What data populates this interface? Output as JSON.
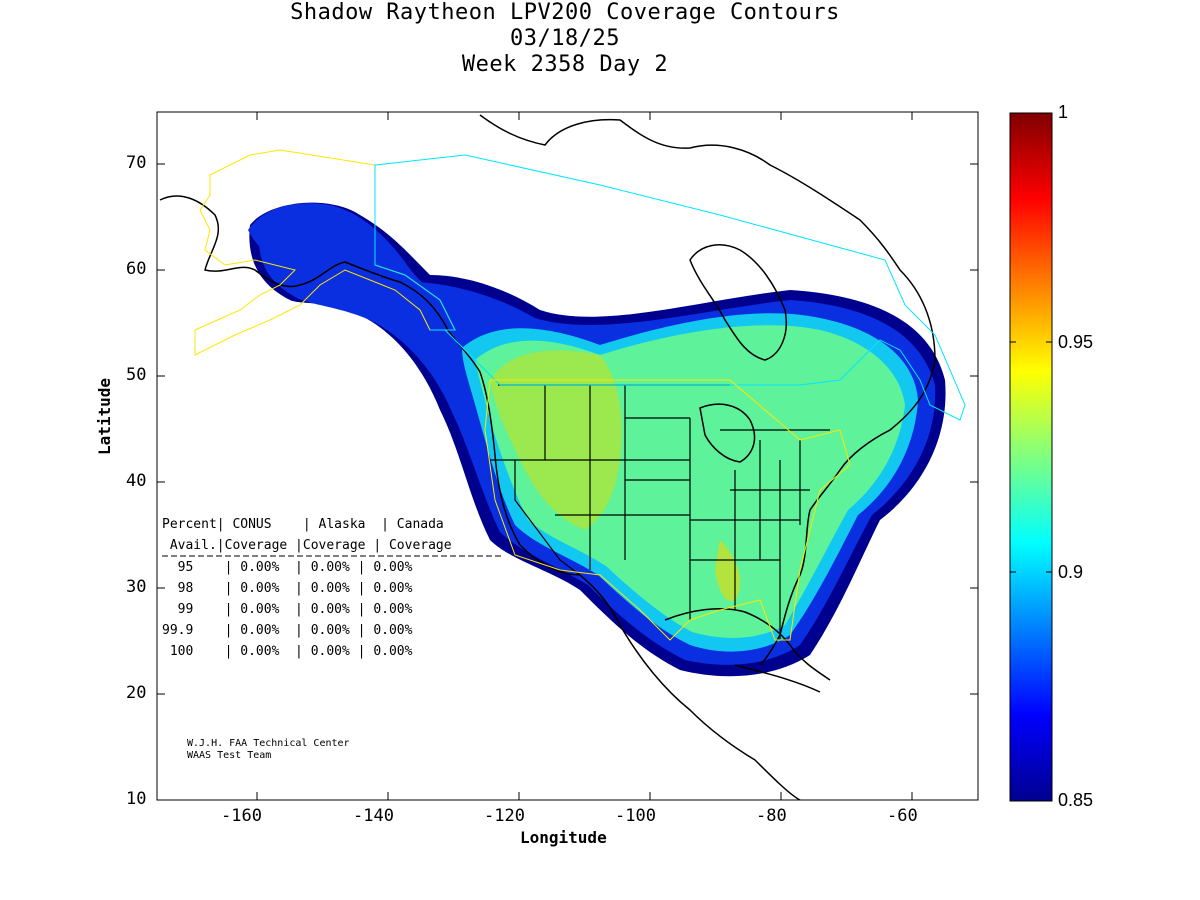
{
  "header": {
    "title": "Shadow Raytheon LPV200 Coverage Contours",
    "date": "03/18/25",
    "week_day": "Week 2358 Day 2"
  },
  "axes": {
    "xlabel": "Longitude",
    "ylabel": "Latitude",
    "x_ticks": [
      "-160",
      "-140",
      "-120",
      "-100",
      "-80",
      "-60"
    ],
    "y_ticks": [
      "10",
      "20",
      "30",
      "40",
      "50",
      "60",
      "70"
    ],
    "xlim": [
      -175,
      -50
    ],
    "ylim": [
      10,
      75
    ]
  },
  "colorbar": {
    "labels": [
      "1",
      "0.95",
      "0.9",
      "0.85"
    ],
    "range": [
      0.85,
      1.0
    ]
  },
  "coverage_table": {
    "header1": "Percent| CONUS    | Alaska  | Canada",
    "header2": " Avail.|Coverage |Coverage | Coverage",
    "rows": [
      "  95    | 0.00%  | 0.00% | 0.00%",
      "  98    | 0.00%  | 0.00% | 0.00%",
      "  99    | 0.00%  | 0.00% | 0.00%",
      "99.9    | 0.00%  | 0.00% | 0.00%",
      " 100    | 0.00%  | 0.00% | 0.00%"
    ]
  },
  "credits": {
    "line1": "W.J.H. FAA Technical Center",
    "line2": "WAAS Test Team"
  },
  "colors": {
    "coverage_high": "#9be84f",
    "coverage_mid": "#5ef29a",
    "coverage_edge": "#0a2fe0",
    "coverage_outer": "#00008f",
    "alaska_boundary": "#ffe600",
    "canada_boundary": "#00e5ff"
  }
}
